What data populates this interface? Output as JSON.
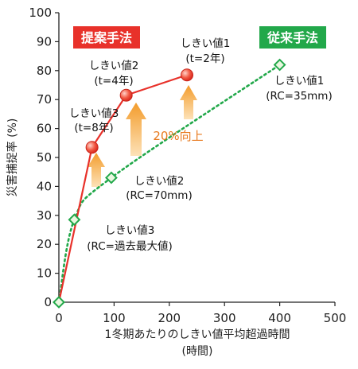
{
  "chart_data": {
    "type": "line",
    "xlabel": "1冬期あたりのしきい値平均超過時間",
    "xlabel_unit": "(時間)",
    "ylabel": "災害捕捉率 (%)",
    "xlim": [
      0,
      500
    ],
    "ylim": [
      0,
      100
    ],
    "x_ticks": [
      0,
      100,
      200,
      300,
      400,
      500
    ],
    "y_ticks": [
      0,
      10,
      20,
      30,
      40,
      50,
      60,
      70,
      80,
      90,
      100
    ],
    "grid": false,
    "series": [
      {
        "name": "提案手法",
        "color": "#e8312a",
        "line_style": "solid",
        "marker": "circle",
        "points": [
          {
            "x": 0,
            "y": 0
          },
          {
            "x": 60,
            "y": 53.5
          },
          {
            "x": 122,
            "y": 71.5
          },
          {
            "x": 232,
            "y": 78.5
          }
        ]
      },
      {
        "name": "従来手法",
        "color": "#22a84a",
        "line_style": "dotted",
        "marker": "diamond",
        "points": [
          {
            "x": 0,
            "y": 0
          },
          {
            "x": 28,
            "y": 28.5
          },
          {
            "x": 95,
            "y": 43
          },
          {
            "x": 400,
            "y": 82
          }
        ]
      }
    ],
    "annotations": {
      "proposed": [
        {
          "line1": "しきい値1",
          "line2": "(t=2年)"
        },
        {
          "line1": "しきい値2",
          "line2": "(t=4年)"
        },
        {
          "line1": "しきい値3",
          "line2": "(t=8年)"
        }
      ],
      "conventional": [
        {
          "line1": "しきい値1",
          "line2": "(RC=35mm)"
        },
        {
          "line1": "しきい値2",
          "line2": "(RC=70mm)"
        },
        {
          "line1": "しきい値3",
          "line2": "(RC=過去最大値)"
        }
      ],
      "improvement": "20%向上"
    },
    "legend": {
      "proposed_label": "提案手法",
      "conventional_label": "従来手法",
      "proposed_color": "#e8312a",
      "conventional_color": "#22a84a"
    }
  }
}
